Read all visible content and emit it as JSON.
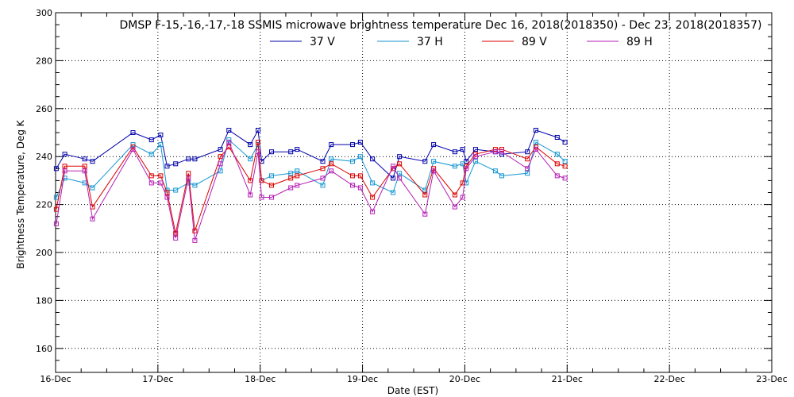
{
  "chart_data": {
    "type": "line",
    "title": "DMSP F-15,-16,-17,-18 SSMIS microwave brightness temperature Dec 16, 2018(2018350) - Dec 23, 2018(2018357)",
    "xlabel": "Date (EST)",
    "ylabel": "Brightness Temperature, Deg K",
    "xlim": [
      "2018-12-16",
      "2018-12-23"
    ],
    "ylim": [
      150,
      300
    ],
    "x_ticks": [
      "16-Dec",
      "17-Dec",
      "18-Dec",
      "19-Dec",
      "20-Dec",
      "21-Dec",
      "22-Dec",
      "23-Dec"
    ],
    "y_ticks": [
      160,
      180,
      200,
      220,
      240,
      260,
      280,
      300
    ],
    "grid": true,
    "legend_position": "top",
    "series": [
      {
        "name": "37 V",
        "color": "#0000aa",
        "points": [
          [
            "2018-12-16 00:10",
            235
          ],
          [
            "2018-12-16 02:10",
            241
          ],
          [
            "2018-12-16 06:50",
            239
          ],
          [
            "2018-12-16 08:40",
            238
          ],
          [
            "2018-12-16 18:10",
            250
          ],
          [
            "2018-12-16 22:30",
            247
          ],
          [
            "2018-12-17 00:40",
            249
          ],
          [
            "2018-12-17 02:10",
            236
          ],
          [
            "2018-12-17 04:10",
            237
          ],
          [
            "2018-12-17 07:10",
            239
          ],
          [
            "2018-12-17 08:40",
            239
          ],
          [
            "2018-12-17 14:40",
            243
          ],
          [
            "2018-12-17 16:40",
            251
          ],
          [
            "2018-12-17 21:40",
            245
          ],
          [
            "2018-12-17 23:30",
            251
          ],
          [
            "2018-12-18 00:20",
            238
          ],
          [
            "2018-12-18 02:40",
            242
          ],
          [
            "2018-12-18 07:10",
            242
          ],
          [
            "2018-12-18 08:40",
            243
          ],
          [
            "2018-12-18 14:40",
            238
          ],
          [
            "2018-12-18 16:40",
            245
          ],
          [
            "2018-12-18 21:40",
            245
          ],
          [
            "2018-12-18 23:30",
            246
          ],
          [
            "2018-12-19 02:20",
            239
          ],
          [
            "2018-12-19 07:10",
            231
          ],
          [
            "2018-12-19 08:40",
            240
          ],
          [
            "2018-12-19 14:40",
            238
          ],
          [
            "2018-12-19 16:40",
            245
          ],
          [
            "2018-12-19 21:40",
            242
          ],
          [
            "2018-12-19 23:30",
            243
          ],
          [
            "2018-12-20 00:20",
            238
          ],
          [
            "2018-12-20 02:30",
            243
          ],
          [
            "2018-12-20 07:10",
            242
          ],
          [
            "2018-12-20 08:40",
            241
          ],
          [
            "2018-12-20 14:40",
            242
          ],
          [
            "2018-12-20 16:40",
            251
          ],
          [
            "2018-12-20 21:40",
            248
          ],
          [
            "2018-12-20 23:30",
            246
          ]
        ]
      },
      {
        "name": "37 H",
        "color": "#1496d2",
        "points": [
          [
            "2018-12-16 00:10",
            223
          ],
          [
            "2018-12-16 02:10",
            231
          ],
          [
            "2018-12-16 06:50",
            229
          ],
          [
            "2018-12-16 08:40",
            227
          ],
          [
            "2018-12-16 18:10",
            245
          ],
          [
            "2018-12-16 22:30",
            241
          ],
          [
            "2018-12-17 00:40",
            245
          ],
          [
            "2018-12-17 02:10",
            226
          ],
          [
            "2018-12-17 04:10",
            226
          ],
          [
            "2018-12-17 07:10",
            229
          ],
          [
            "2018-12-17 08:40",
            228
          ],
          [
            "2018-12-17 14:40",
            234
          ],
          [
            "2018-12-17 16:40",
            247
          ],
          [
            "2018-12-17 21:40",
            239
          ],
          [
            "2018-12-17 23:30",
            245
          ],
          [
            "2018-12-18 00:20",
            230
          ],
          [
            "2018-12-18 02:40",
            232
          ],
          [
            "2018-12-18 07:10",
            233
          ],
          [
            "2018-12-18 08:40",
            234
          ],
          [
            "2018-12-18 14:40",
            228
          ],
          [
            "2018-12-18 16:40",
            239
          ],
          [
            "2018-12-18 21:40",
            238
          ],
          [
            "2018-12-18 23:30",
            240
          ],
          [
            "2018-12-19 02:20",
            229
          ],
          [
            "2018-12-19 07:10",
            225
          ],
          [
            "2018-12-19 08:40",
            233
          ],
          [
            "2018-12-19 14:40",
            226
          ],
          [
            "2018-12-19 16:40",
            238
          ],
          [
            "2018-12-19 21:40",
            236
          ],
          [
            "2018-12-19 23:30",
            237
          ],
          [
            "2018-12-20 00:20",
            229
          ],
          [
            "2018-12-20 02:30",
            238
          ],
          [
            "2018-12-20 07:10",
            234
          ],
          [
            "2018-12-20 08:40",
            232
          ],
          [
            "2018-12-20 14:40",
            233
          ],
          [
            "2018-12-20 16:40",
            246
          ],
          [
            "2018-12-20 21:40",
            241
          ],
          [
            "2018-12-20 23:30",
            238
          ]
        ]
      },
      {
        "name": "89 V",
        "color": "#dd0000",
        "points": [
          [
            "2018-12-16 00:10",
            218
          ],
          [
            "2018-12-16 02:10",
            236
          ],
          [
            "2018-12-16 06:50",
            236
          ],
          [
            "2018-12-16 08:40",
            219
          ],
          [
            "2018-12-16 18:10",
            244
          ],
          [
            "2018-12-16 22:30",
            232
          ],
          [
            "2018-12-17 00:40",
            232
          ],
          [
            "2018-12-17 02:10",
            225
          ],
          [
            "2018-12-17 04:10",
            208
          ],
          [
            "2018-12-17 07:10",
            233
          ],
          [
            "2018-12-17 08:40",
            209
          ],
          [
            "2018-12-17 14:40",
            240
          ],
          [
            "2018-12-17 16:40",
            244
          ],
          [
            "2018-12-17 21:40",
            230
          ],
          [
            "2018-12-17 23:30",
            246
          ],
          [
            "2018-12-18 00:20",
            230
          ],
          [
            "2018-12-18 02:40",
            228
          ],
          [
            "2018-12-18 07:10",
            231
          ],
          [
            "2018-12-18 08:40",
            232
          ],
          [
            "2018-12-18 14:40",
            235
          ],
          [
            "2018-12-18 16:40",
            237
          ],
          [
            "2018-12-18 21:40",
            232
          ],
          [
            "2018-12-18 23:30",
            232
          ],
          [
            "2018-12-19 02:20",
            223
          ],
          [
            "2018-12-19 07:10",
            235
          ],
          [
            "2018-12-19 08:40",
            237
          ],
          [
            "2018-12-19 14:40",
            224
          ],
          [
            "2018-12-19 16:40",
            235
          ],
          [
            "2018-12-19 21:40",
            224
          ],
          [
            "2018-12-19 23:30",
            229
          ],
          [
            "2018-12-20 00:20",
            236
          ],
          [
            "2018-12-20 02:30",
            241
          ],
          [
            "2018-12-20 07:10",
            243
          ],
          [
            "2018-12-20 08:40",
            243
          ],
          [
            "2018-12-20 14:40",
            239
          ],
          [
            "2018-12-20 16:40",
            244
          ],
          [
            "2018-12-20 21:40",
            237
          ],
          [
            "2018-12-20 23:30",
            236
          ]
        ]
      },
      {
        "name": "89 H",
        "color": "#b41eb4",
        "points": [
          [
            "2018-12-16 00:10",
            212
          ],
          [
            "2018-12-16 02:10",
            234
          ],
          [
            "2018-12-16 06:50",
            234
          ],
          [
            "2018-12-16 08:40",
            214
          ],
          [
            "2018-12-16 18:10",
            243
          ],
          [
            "2018-12-16 22:30",
            229
          ],
          [
            "2018-12-17 00:40",
            229
          ],
          [
            "2018-12-17 02:10",
            223
          ],
          [
            "2018-12-17 04:10",
            206
          ],
          [
            "2018-12-17 07:10",
            231
          ],
          [
            "2018-12-17 08:40",
            205
          ],
          [
            "2018-12-17 14:40",
            237
          ],
          [
            "2018-12-17 16:40",
            246
          ],
          [
            "2018-12-17 21:40",
            224
          ],
          [
            "2018-12-17 23:30",
            242
          ],
          [
            "2018-12-18 00:20",
            223
          ],
          [
            "2018-12-18 02:40",
            223
          ],
          [
            "2018-12-18 07:10",
            227
          ],
          [
            "2018-12-18 08:40",
            228
          ],
          [
            "2018-12-18 14:40",
            231
          ],
          [
            "2018-12-18 16:40",
            234
          ],
          [
            "2018-12-18 21:40",
            228
          ],
          [
            "2018-12-18 23:30",
            227
          ],
          [
            "2018-12-19 02:20",
            217
          ],
          [
            "2018-12-19 07:10",
            236
          ],
          [
            "2018-12-19 08:40",
            231
          ],
          [
            "2018-12-19 14:40",
            216
          ],
          [
            "2018-12-19 16:40",
            234
          ],
          [
            "2018-12-19 21:40",
            219
          ],
          [
            "2018-12-19 23:30",
            223
          ],
          [
            "2018-12-20 00:20",
            235
          ],
          [
            "2018-12-20 02:30",
            240
          ],
          [
            "2018-12-20 07:10",
            242
          ],
          [
            "2018-12-20 08:40",
            242
          ],
          [
            "2018-12-20 14:40",
            235
          ],
          [
            "2018-12-20 16:40",
            243
          ],
          [
            "2018-12-20 21:40",
            232
          ],
          [
            "2018-12-20 23:30",
            231
          ]
        ]
      }
    ]
  }
}
